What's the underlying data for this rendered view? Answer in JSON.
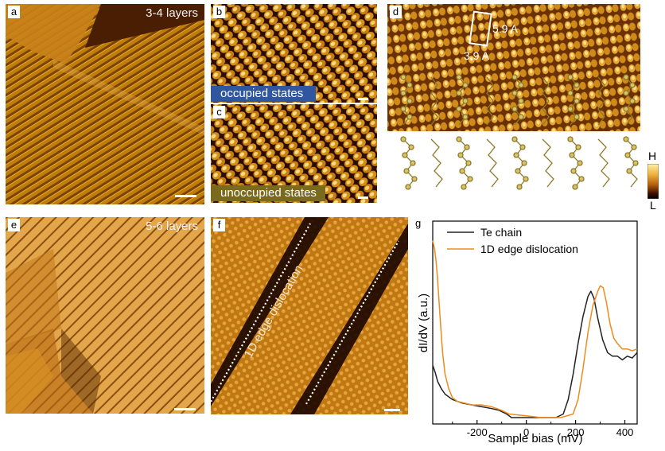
{
  "panels": {
    "a": {
      "letter": "a",
      "label": "3-4 layers"
    },
    "b": {
      "letter": "b",
      "state": "occupied states",
      "state_color": "#2f57a0"
    },
    "c": {
      "letter": "c",
      "state": "unoccupied states",
      "state_color": "#7a6a1c"
    },
    "d": {
      "letter": "d",
      "dim_vertical": "5.9 A",
      "dim_horizontal": "3.9 A"
    },
    "e": {
      "letter": "e",
      "label": "5-6 layers"
    },
    "f": {
      "letter": "f",
      "annotation": "1D edge dislocation"
    },
    "g": {
      "letter": "g"
    }
  },
  "colorbar": {
    "high": "H",
    "low": "L"
  },
  "chart_data": {
    "type": "line",
    "xlabel": "Sample bias (mV)",
    "ylabel": "dI/dV (a.u.)",
    "xlim": [
      -380,
      450
    ],
    "ylim": [
      0,
      1
    ],
    "x_ticks": [
      -200,
      0,
      200,
      400
    ],
    "x_tick_labels": [
      "-200",
      "0",
      "200",
      "400"
    ],
    "legend_position": "top-left",
    "series": [
      {
        "name": "Te chain",
        "color": "#222222",
        "x": [
          -380,
          -370,
          -360,
          -345,
          -330,
          -300,
          -260,
          -220,
          -180,
          -140,
          -110,
          -80,
          -60,
          0,
          60,
          120,
          150,
          170,
          190,
          210,
          230,
          250,
          262,
          275,
          290,
          310,
          330,
          350,
          370,
          390,
          410,
          430,
          450
        ],
        "y": [
          0.29,
          0.25,
          0.2,
          0.16,
          0.13,
          0.1,
          0.08,
          0.07,
          0.06,
          0.05,
          0.04,
          0.02,
          0.0,
          0.0,
          0.0,
          0.0,
          0.02,
          0.1,
          0.24,
          0.41,
          0.56,
          0.67,
          0.7,
          0.66,
          0.55,
          0.43,
          0.36,
          0.34,
          0.34,
          0.32,
          0.34,
          0.33,
          0.36
        ]
      },
      {
        "name": "1D edge dislocation",
        "color": "#f08a1e",
        "x": [
          -380,
          -372,
          -365,
          -358,
          -350,
          -340,
          -330,
          -315,
          -300,
          -280,
          -250,
          -220,
          -180,
          -140,
          -100,
          -70,
          0,
          60,
          140,
          190,
          210,
          230,
          250,
          270,
          290,
          300,
          312,
          325,
          340,
          355,
          370,
          390,
          410,
          430,
          450
        ],
        "y": [
          0.98,
          0.93,
          0.85,
          0.72,
          0.55,
          0.36,
          0.24,
          0.16,
          0.11,
          0.09,
          0.08,
          0.07,
          0.07,
          0.06,
          0.04,
          0.02,
          0.01,
          0.0,
          0.0,
          0.02,
          0.1,
          0.27,
          0.47,
          0.62,
          0.7,
          0.73,
          0.72,
          0.64,
          0.52,
          0.44,
          0.41,
          0.38,
          0.38,
          0.37,
          0.38
        ]
      }
    ]
  }
}
